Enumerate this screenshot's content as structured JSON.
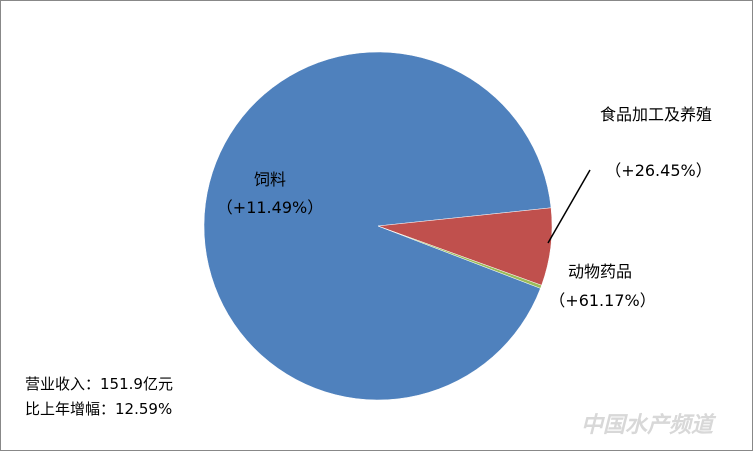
{
  "chart_data": {
    "type": "pie",
    "categories": [
      "饲料",
      "食品加工及养殖",
      "动物药品"
    ],
    "values": [
      92.5,
      7.2,
      0.3
    ],
    "colors": [
      "#4f81bd",
      "#c0504d",
      "#9bbb59"
    ],
    "growth_labels": [
      "（+11.49%）",
      "（+26.45%）",
      "（+61.17%）"
    ],
    "annotations": [
      "营业收入：151.9亿元",
      "比上年增幅：12.59%"
    ],
    "watermark": "中国水产频道"
  }
}
